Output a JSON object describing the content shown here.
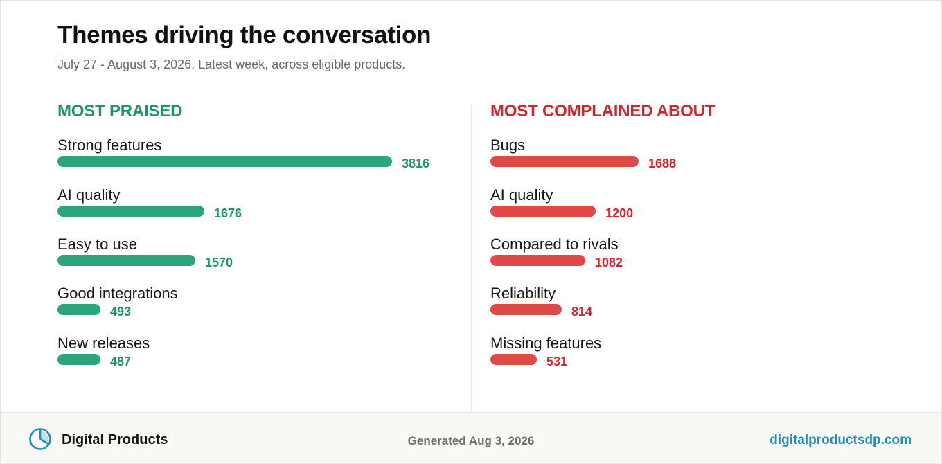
{
  "header": {
    "title": "Themes driving the conversation",
    "subtitle": "July 27 - August 3, 2026. Latest week, across eligible products."
  },
  "footer": {
    "brand": "Digital Products",
    "brand_icon": "pie-chart-icon",
    "generated": "Generated Aug 3, 2026",
    "site": "digitalproductsdp.com"
  },
  "colors": {
    "praised": "#2ba67a",
    "praised_text": "#1f9467",
    "complained": "#e14848",
    "complained_text": "#d4252c",
    "brand": "#1c8fb7"
  },
  "chart_data": [
    {
      "type": "bar",
      "orientation": "horizontal",
      "title": "MOST PRAISED",
      "categories": [
        "Strong features",
        "AI quality",
        "Easy to use",
        "Good integrations",
        "New releases"
      ],
      "values": [
        3816,
        1676,
        1570,
        493,
        487
      ]
    },
    {
      "type": "bar",
      "orientation": "horizontal",
      "title": "MOST COMPLAINED ABOUT",
      "categories": [
        "Bugs",
        "AI quality",
        "Compared to rivals",
        "Reliability",
        "Missing features"
      ],
      "values": [
        1688,
        1200,
        1082,
        814,
        531
      ]
    }
  ]
}
